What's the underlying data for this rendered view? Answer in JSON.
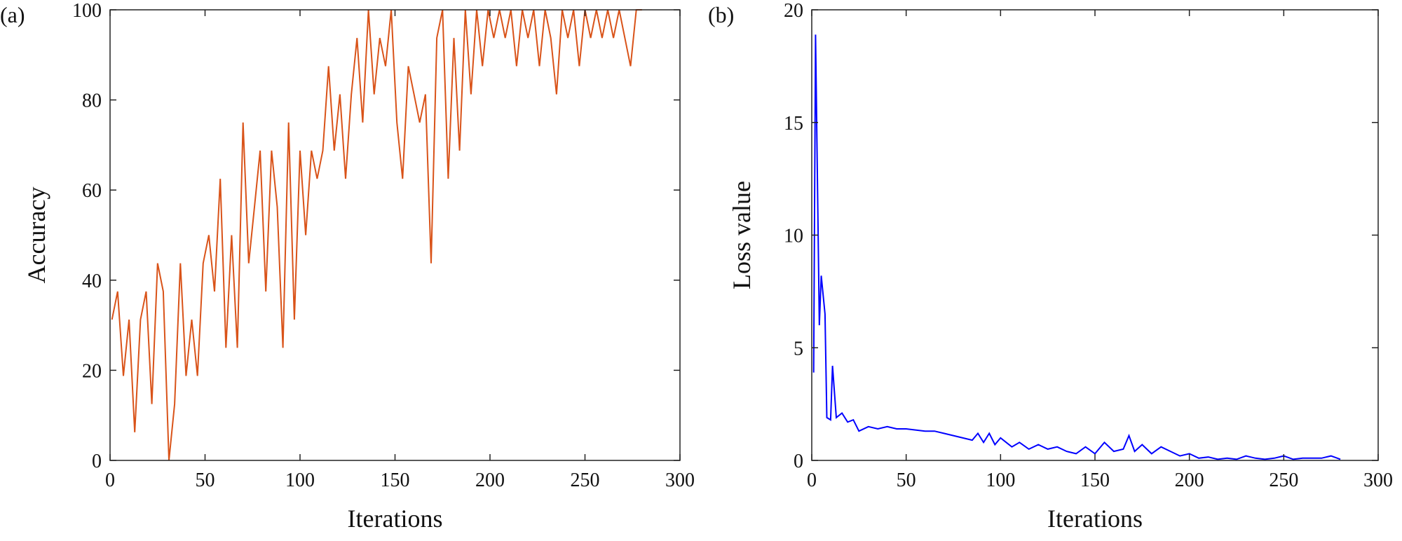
{
  "chart_data": [
    {
      "type": "line",
      "panel_label": "(a)",
      "xlabel": "Iterations",
      "ylabel": "Accuracy",
      "color": "#d95319",
      "x": [
        1,
        4,
        7,
        10,
        13,
        16,
        19,
        22,
        25,
        28,
        31,
        34,
        37,
        40,
        43,
        46,
        49,
        52,
        55,
        58,
        61,
        64,
        67,
        70,
        73,
        76,
        79,
        82,
        85,
        88,
        91,
        94,
        97,
        100,
        103,
        106,
        109,
        112,
        115,
        118,
        121,
        124,
        127,
        130,
        133,
        136,
        139,
        142,
        145,
        148,
        151,
        154,
        157,
        160,
        163,
        166,
        169,
        172,
        175,
        178,
        181,
        184,
        187,
        190,
        193,
        196,
        199,
        202,
        205,
        208,
        211,
        214,
        217,
        220,
        223,
        226,
        229,
        232,
        235,
        238,
        241,
        244,
        247,
        250,
        253,
        256,
        259,
        262,
        265,
        268,
        271,
        274,
        277,
        280
      ],
      "values": [
        31.25,
        37.5,
        18.75,
        31.25,
        6.25,
        31.25,
        37.5,
        12.5,
        43.75,
        37.5,
        0,
        12.5,
        43.75,
        18.75,
        31.25,
        18.75,
        43.75,
        50,
        37.5,
        62.5,
        25,
        50,
        25,
        75,
        43.75,
        56.25,
        68.75,
        37.5,
        68.75,
        56.25,
        25,
        75,
        31.25,
        68.75,
        50,
        68.75,
        62.5,
        68.75,
        87.5,
        68.75,
        81.25,
        62.5,
        81.25,
        93.75,
        75,
        100,
        81.25,
        93.75,
        87.5,
        100,
        75,
        62.5,
        87.5,
        81.25,
        75,
        81.25,
        43.75,
        93.75,
        100,
        62.5,
        93.75,
        68.75,
        100,
        81.25,
        100,
        87.5,
        100,
        93.75,
        100,
        93.75,
        100,
        87.5,
        100,
        93.75,
        100,
        87.5,
        100,
        93.75,
        81.25,
        100,
        93.75,
        100,
        87.5,
        100,
        93.75,
        100,
        93.75,
        100,
        93.75,
        100,
        93.75,
        87.5,
        100,
        100
      ],
      "xlim": [
        0,
        300
      ],
      "ylim": [
        0,
        100
      ],
      "xticks": [
        0,
        50,
        100,
        150,
        200,
        250,
        300
      ],
      "yticks": [
        0,
        20,
        40,
        60,
        80,
        100
      ]
    },
    {
      "type": "line",
      "panel_label": "(b)",
      "xlabel": "Iterations",
      "ylabel": "Loss value",
      "color": "#0000ff",
      "x": [
        1,
        2,
        4,
        5,
        7,
        8,
        10,
        11,
        13,
        16,
        19,
        22,
        25,
        30,
        35,
        40,
        45,
        50,
        55,
        60,
        65,
        70,
        75,
        80,
        85,
        88,
        91,
        94,
        97,
        100,
        103,
        106,
        110,
        115,
        120,
        125,
        130,
        135,
        140,
        145,
        150,
        155,
        160,
        165,
        168,
        171,
        175,
        180,
        185,
        190,
        195,
        200,
        205,
        210,
        215,
        220,
        225,
        230,
        235,
        240,
        245,
        250,
        255,
        260,
        265,
        270,
        275,
        280
      ],
      "values": [
        3.9,
        18.9,
        6.0,
        8.2,
        6.5,
        1.9,
        1.8,
        4.2,
        1.9,
        2.1,
        1.7,
        1.8,
        1.3,
        1.5,
        1.4,
        1.5,
        1.4,
        1.4,
        1.35,
        1.3,
        1.3,
        1.2,
        1.1,
        1.0,
        0.9,
        1.2,
        0.8,
        1.2,
        0.7,
        1.0,
        0.8,
        0.6,
        0.8,
        0.5,
        0.7,
        0.5,
        0.6,
        0.4,
        0.3,
        0.6,
        0.3,
        0.8,
        0.4,
        0.5,
        1.1,
        0.4,
        0.7,
        0.3,
        0.6,
        0.4,
        0.2,
        0.3,
        0.1,
        0.15,
        0.05,
        0.1,
        0.05,
        0.2,
        0.1,
        0.05,
        0.1,
        0.2,
        0.05,
        0.1,
        0.1,
        0.1,
        0.2,
        0.05
      ],
      "xlim": [
        0,
        300
      ],
      "ylim": [
        0,
        20
      ],
      "xticks": [
        0,
        50,
        100,
        150,
        200,
        250,
        300
      ],
      "yticks": [
        0,
        5,
        10,
        15,
        20
      ]
    }
  ]
}
